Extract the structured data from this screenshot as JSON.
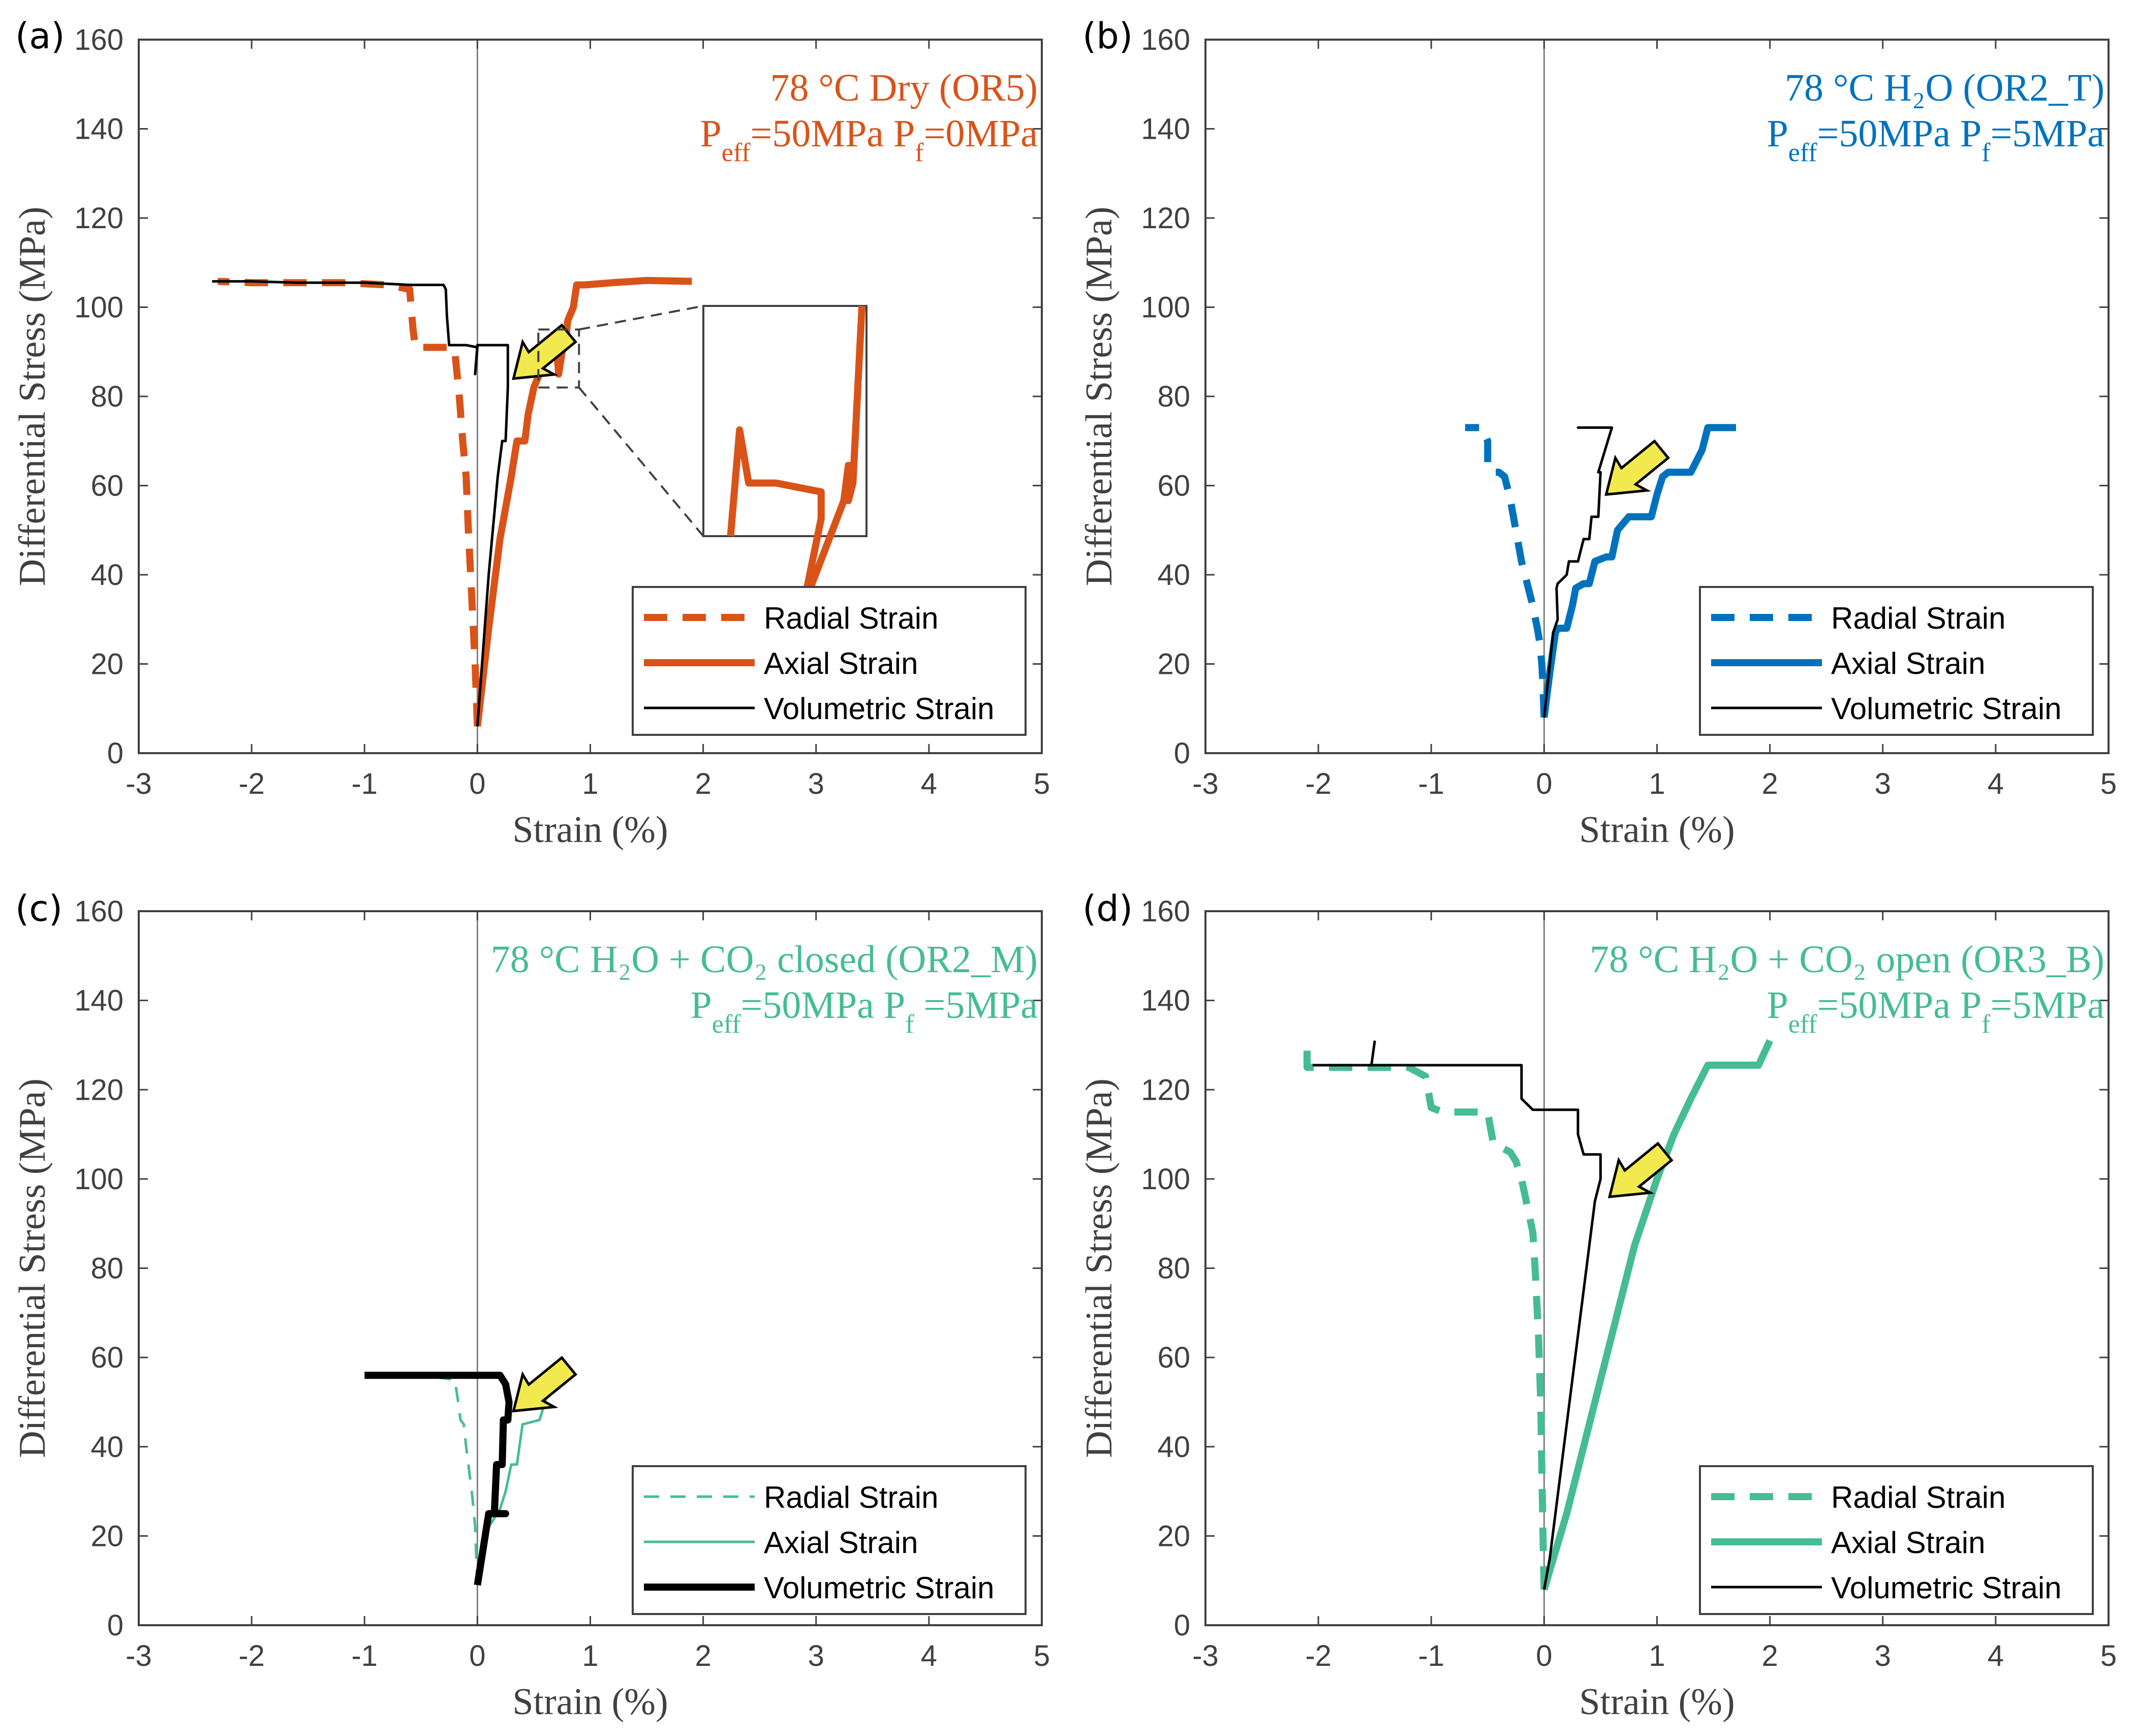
{
  "figure": {
    "colors": {
      "orange": "#D95319",
      "blue": "#0072BD",
      "green": "#46BC93",
      "black": "#000000",
      "arrow_fill": "#F2E94E"
    }
  },
  "chart_data": [
    {
      "type": "line",
      "panel_label": "(a)",
      "title_line1": "78 °C Dry   (OR5)",
      "title_line2_main": "P",
      "title_line2_parts": [
        {
          "text": "P",
          "sub": "eff"
        },
        {
          "text": "=50MPa   P",
          "sub": "f"
        },
        {
          "text": "=0MPa",
          "sub": ""
        }
      ],
      "annotation_color": "#D95319",
      "xlabel": "Strain (%)",
      "ylabel": "Differential Stress (MPa)",
      "xlim": [
        -3,
        5
      ],
      "ylim": [
        0,
        160
      ],
      "xticks": [
        -3,
        -2,
        -1,
        0,
        1,
        2,
        3,
        4,
        5
      ],
      "yticks": [
        0,
        20,
        40,
        60,
        80,
        100,
        120,
        140,
        160
      ],
      "xtick_labels": [
        "-3",
        "-2",
        "-1",
        "0",
        "1",
        "2",
        "3",
        "4",
        "5"
      ],
      "ytick_labels": [
        "0",
        "20",
        "40",
        "60",
        "80",
        "100",
        "120",
        "140",
        "160"
      ],
      "legend": {
        "position": "bottom-right",
        "entries": [
          "Radial Strain",
          "Axial Strain",
          "Volumetric Strain"
        ]
      },
      "arrow_at": [
        0.32,
        84
      ],
      "inset": {
        "zoom_region_x": [
          0.54,
          0.9
        ],
        "zoom_region_y": [
          82,
          95
        ],
        "description": "Magnified view of axial strain loop near 83-85 MPa"
      },
      "series": [
        {
          "name": "Radial Strain",
          "color": "#D95319",
          "style": "dashed",
          "width": "thick",
          "x": [
            0.0,
            -0.02,
            -0.05,
            -0.08,
            -0.1,
            -0.13,
            -0.16,
            -0.18,
            -0.2,
            -0.22,
            -0.25,
            -0.3,
            -0.4,
            -0.5,
            -0.55,
            -0.57,
            -0.6,
            -0.8,
            -1.2,
            -1.6,
            -2.0,
            -2.3
          ],
          "y": [
            6,
            20,
            35,
            50,
            62,
            70,
            80,
            85,
            90,
            91,
            91,
            91,
            91,
            91,
            91,
            95,
            104,
            105,
            105.5,
            105.5,
            105.5,
            105.8
          ]
        },
        {
          "name": "Axial Strain",
          "color": "#D95319",
          "style": "solid",
          "width": "thick",
          "x": [
            0.0,
            0.1,
            0.2,
            0.3,
            0.35,
            0.42,
            0.45,
            0.5,
            0.55,
            0.58,
            0.6,
            0.65,
            0.7,
            0.72,
            0.75,
            0.78,
            0.8,
            0.85,
            0.88,
            0.95,
            1.2,
            1.5,
            1.9
          ],
          "y": [
            6,
            28,
            48,
            62,
            70,
            70,
            76,
            82,
            85,
            88,
            91.5,
            91.5,
            91.5,
            85,
            90,
            92,
            97,
            100,
            105,
            105,
            105.5,
            106,
            105.8
          ]
        },
        {
          "name": "Volumetric Strain",
          "color": "#000000",
          "style": "solid",
          "width": "thin",
          "x": [
            0.0,
            0.1,
            0.18,
            0.22,
            0.25,
            0.27,
            0.27,
            0.0,
            -0.02,
            0.0,
            -0.1,
            -0.25,
            -0.27,
            -0.28,
            -0.3,
            -0.6,
            -1.0,
            -1.6,
            -2.0,
            -2.35
          ],
          "y": [
            6,
            40,
            62,
            70,
            70,
            82,
            91.5,
            91.5,
            85,
            91,
            91.5,
            91.5,
            98,
            104,
            105,
            105,
            105.5,
            105.5,
            105.8,
            105.8
          ]
        }
      ]
    },
    {
      "type": "line",
      "panel_label": "(b)",
      "title_line1": "78 °C H₂O  (OR2_T)",
      "title_line2_parts": [
        {
          "text": "P",
          "sub": "eff"
        },
        {
          "text": "=50MPa   P",
          "sub": "f"
        },
        {
          "text": "=5MPa",
          "sub": ""
        }
      ],
      "annotation_color": "#0072BD",
      "xlabel": "Strain (%)",
      "ylabel": "Differential Stress (MPa)",
      "xlim": [
        -3,
        5
      ],
      "ylim": [
        0,
        160
      ],
      "xticks": [
        -3,
        -2,
        -1,
        0,
        1,
        2,
        3,
        4,
        5
      ],
      "yticks": [
        0,
        20,
        40,
        60,
        80,
        100,
        120,
        140,
        160
      ],
      "xtick_labels": [
        "-3",
        "-2",
        "-1",
        "0",
        "1",
        "2",
        "3",
        "4",
        "5"
      ],
      "ytick_labels": [
        "0",
        "20",
        "40",
        "60",
        "80",
        "100",
        "120",
        "140",
        "160"
      ],
      "legend": {
        "position": "bottom-right",
        "entries": [
          "Radial Strain",
          "Axial Strain",
          "Volumetric Strain"
        ]
      },
      "arrow_at": [
        0.55,
        58
      ],
      "series": [
        {
          "name": "Radial Strain",
          "color": "#0072BD",
          "style": "dashed",
          "width": "thick",
          "x": [
            0.0,
            -0.01,
            -0.02,
            -0.04,
            -0.06,
            -0.1,
            -0.15,
            -0.2,
            -0.25,
            -0.3,
            -0.35,
            -0.4,
            -0.45,
            -0.5,
            -0.5,
            -0.55,
            -0.7
          ],
          "y": [
            8,
            15,
            20,
            25,
            28,
            33,
            38,
            43,
            50,
            57,
            62,
            63,
            63,
            64,
            70,
            73,
            73
          ]
        },
        {
          "name": "Axial Strain",
          "color": "#0072BD",
          "style": "solid",
          "width": "thick",
          "x": [
            0.0,
            0.05,
            0.1,
            0.12,
            0.2,
            0.25,
            0.28,
            0.35,
            0.4,
            0.45,
            0.55,
            0.6,
            0.65,
            0.75,
            0.8,
            0.95,
            1.0,
            1.05,
            1.1,
            1.15,
            1.3,
            1.4,
            1.45,
            1.6,
            1.7
          ],
          "y": [
            8,
            18,
            27,
            28,
            28,
            33,
            37,
            38,
            38,
            43,
            44,
            44,
            50,
            53,
            53,
            53,
            58,
            62,
            63,
            63,
            63,
            68,
            73,
            73,
            73
          ]
        },
        {
          "name": "Volumetric Strain",
          "color": "#000000",
          "style": "solid",
          "width": "thin",
          "x": [
            0.0,
            0.08,
            0.12,
            0.11,
            0.12,
            0.2,
            0.22,
            0.3,
            0.35,
            0.4,
            0.42,
            0.48,
            0.5,
            0.48,
            0.6,
            0.3,
            0.48
          ],
          "y": [
            8,
            27,
            30,
            37,
            38,
            40,
            43,
            43,
            48,
            48,
            53,
            53,
            63,
            63,
            73,
            73,
            73
          ]
        }
      ]
    },
    {
      "type": "line",
      "panel_label": "(c)",
      "title_line1": "78 °C H₂O + CO₂ closed (OR2_M)",
      "title_line2_parts": [
        {
          "text": "P",
          "sub": "eff"
        },
        {
          "text": "=50MPa   P",
          "sub": "f"
        },
        {
          "text": " =5MPa",
          "sub": ""
        }
      ],
      "annotation_color": "#46BC93",
      "xlabel": "Strain (%)",
      "ylabel": "Differential Stress (MPa)",
      "xlim": [
        -3,
        5
      ],
      "ylim": [
        0,
        160
      ],
      "xticks": [
        -3,
        -2,
        -1,
        0,
        1,
        2,
        3,
        4,
        5
      ],
      "yticks": [
        0,
        20,
        40,
        60,
        80,
        100,
        120,
        140,
        160
      ],
      "xtick_labels": [
        "-3",
        "-2",
        "-1",
        "0",
        "1",
        "2",
        "3",
        "4",
        "5"
      ],
      "ytick_labels": [
        "0",
        "20",
        "40",
        "60",
        "80",
        "100",
        "120",
        "140",
        "160"
      ],
      "legend": {
        "position": "bottom-right",
        "entries": [
          "Radial Strain",
          "Axial Strain",
          "Volumetric Strain"
        ]
      },
      "arrow_at": [
        0.32,
        48
      ],
      "series": [
        {
          "name": "Radial Strain",
          "color": "#46BC93",
          "style": "dashed",
          "width": "thin",
          "x": [
            0.0,
            -0.01,
            -0.02,
            -0.03,
            -0.05,
            -0.08,
            -0.1,
            -0.12,
            -0.15,
            -0.17,
            -0.2,
            -0.5,
            -1.0
          ],
          "y": [
            9,
            15,
            22,
            25,
            30,
            36,
            40,
            45,
            46,
            50,
            55,
            56,
            56
          ]
        },
        {
          "name": "Axial Strain",
          "color": "#46BC93",
          "style": "solid",
          "width": "thin",
          "x": [
            0.0,
            0.1,
            0.2,
            0.25,
            0.3,
            0.35,
            0.4,
            0.55,
            0.6,
            0.65,
            0.8
          ],
          "y": [
            9,
            22,
            26,
            30,
            36,
            36,
            45,
            46,
            50,
            56,
            56
          ]
        },
        {
          "name": "Volumetric Strain",
          "color": "#000000",
          "style": "solid",
          "width": "thick",
          "x": [
            0.0,
            0.1,
            0.25,
            0.15,
            0.17,
            0.22,
            0.23,
            0.27,
            0.28,
            0.25,
            0.2,
            0.0,
            -0.5,
            -1.0
          ],
          "y": [
            9,
            25,
            25,
            25,
            36,
            36,
            46,
            46,
            50,
            54,
            56,
            56,
            56,
            56
          ]
        }
      ]
    },
    {
      "type": "line",
      "panel_label": "(d)",
      "title_line1": "78 °C H₂O + CO₂ open (OR3_B)",
      "title_line2_parts": [
        {
          "text": "P",
          "sub": "eff"
        },
        {
          "text": "=50MPa   P",
          "sub": "f"
        },
        {
          "text": "=5MPa",
          "sub": ""
        }
      ],
      "annotation_color": "#46BC93",
      "xlabel": "Strain (%)",
      "ylabel": "Differential Stress (MPa)",
      "xlim": [
        -3,
        5
      ],
      "ylim": [
        0,
        160
      ],
      "xticks": [
        -3,
        -2,
        -1,
        0,
        1,
        2,
        3,
        4,
        5
      ],
      "yticks": [
        0,
        20,
        40,
        60,
        80,
        100,
        120,
        140,
        160
      ],
      "xtick_labels": [
        "-3",
        "-2",
        "-1",
        "0",
        "1",
        "2",
        "3",
        "4",
        "5"
      ],
      "ytick_labels": [
        "0",
        "20",
        "40",
        "60",
        "80",
        "100",
        "120",
        "140",
        "160"
      ],
      "legend": {
        "position": "bottom-right",
        "entries": [
          "Radial Strain",
          "Axial Strain",
          "Volumetric Strain"
        ]
      },
      "arrow_at": [
        0.58,
        96
      ],
      "series": [
        {
          "name": "Radial Strain",
          "color": "#46BC93",
          "style": "dashed",
          "width": "thick",
          "x": [
            0.0,
            -0.01,
            -0.02,
            -0.03,
            -0.05,
            -0.08,
            -0.1,
            -0.15,
            -0.2,
            -0.25,
            -0.3,
            -0.45,
            -0.5,
            -0.9,
            -1.0,
            -1.05,
            -1.2,
            -1.5,
            -2.1,
            -2.1
          ],
          "y": [
            8,
            20,
            35,
            50,
            65,
            80,
            88,
            94,
            100,
            104,
            106,
            108,
            115,
            115,
            116,
            123,
            125,
            125,
            125,
            131
          ]
        },
        {
          "name": "Axial Strain",
          "color": "#46BC93",
          "style": "solid",
          "width": "thick",
          "x": [
            0.0,
            0.2,
            0.4,
            0.6,
            0.8,
            1.0,
            1.15,
            1.3,
            1.4,
            1.45,
            1.7,
            1.9,
            2.0
          ],
          "y": [
            8,
            25,
            45,
            65,
            85,
            100,
            110,
            118,
            123,
            125.5,
            125.5,
            125.5,
            131
          ]
        },
        {
          "name": "Volumetric Strain",
          "color": "#000000",
          "style": "solid",
          "width": "thin",
          "x": [
            0.0,
            0.05,
            0.1,
            0.15,
            0.2,
            0.25,
            0.3,
            0.35,
            0.4,
            0.45,
            0.5,
            0.5,
            0.35,
            0.3,
            0.3,
            -0.1,
            -0.2,
            -0.2,
            -1.0,
            -1.5,
            -2.05
          ],
          "y": [
            8,
            15,
            25,
            35,
            45,
            55,
            65,
            75,
            85,
            95,
            100,
            105.5,
            105.5,
            110,
            115.5,
            115.5,
            118,
            125.5,
            125.5,
            125.5,
            125.5
          ]
        }
      ],
      "extra_marks": [
        {
          "name": "Volumetric Strain spike",
          "x": [
            -1.53,
            -1.5
          ],
          "y": [
            125.5,
            131
          ]
        }
      ]
    }
  ]
}
